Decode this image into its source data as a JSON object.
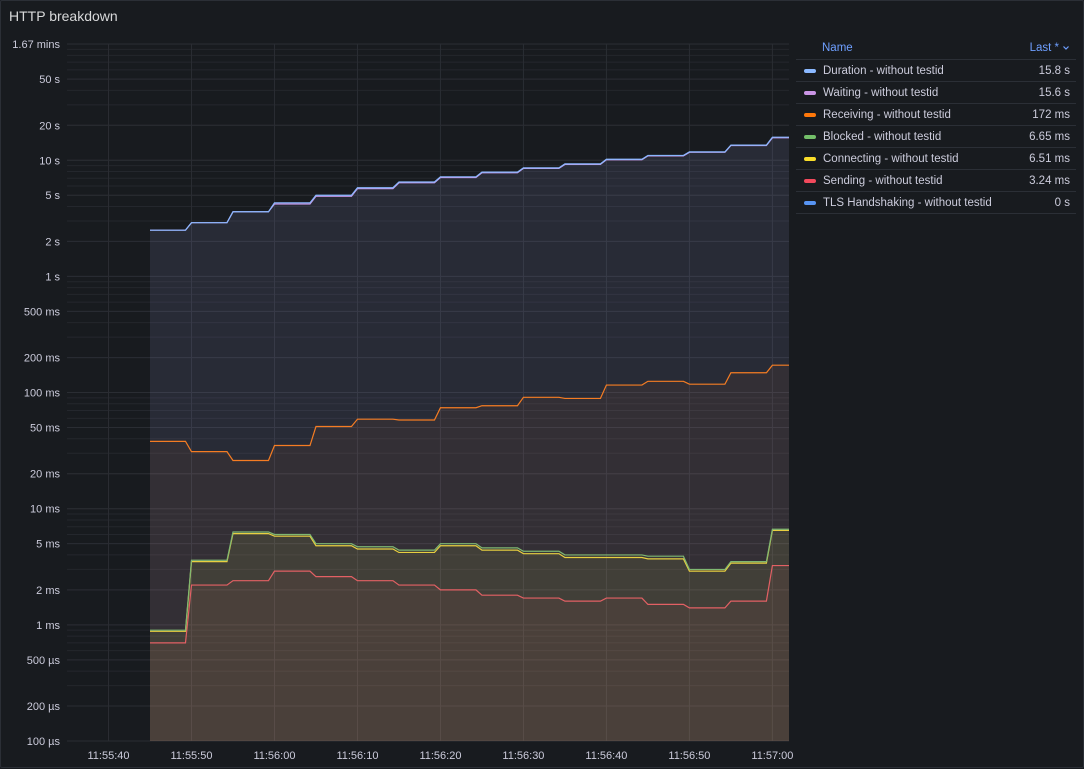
{
  "panel": {
    "title": "HTTP breakdown"
  },
  "legend": {
    "name_header": "Name",
    "last_header": "Last *",
    "chevron_icon": "chevron-down-icon"
  },
  "chart_data": {
    "type": "area",
    "yscale": "log",
    "ylim": [
      0.0001,
      100.2
    ],
    "grid": true,
    "legend_position": "right",
    "y_ticks": [
      {
        "v": 100.2,
        "label": "1.67 mins"
      },
      {
        "v": 50,
        "label": "50 s"
      },
      {
        "v": 20,
        "label": "20 s"
      },
      {
        "v": 10,
        "label": "10 s"
      },
      {
        "v": 5,
        "label": "5 s"
      },
      {
        "v": 2,
        "label": "2 s"
      },
      {
        "v": 1,
        "label": "1 s"
      },
      {
        "v": 0.5,
        "label": "500 ms"
      },
      {
        "v": 0.2,
        "label": "200 ms"
      },
      {
        "v": 0.1,
        "label": "100 ms"
      },
      {
        "v": 0.05,
        "label": "50 ms"
      },
      {
        "v": 0.02,
        "label": "20 ms"
      },
      {
        "v": 0.01,
        "label": "10 ms"
      },
      {
        "v": 0.005,
        "label": "5 ms"
      },
      {
        "v": 0.002,
        "label": "2 ms"
      },
      {
        "v": 0.001,
        "label": "1 ms"
      },
      {
        "v": 0.0005,
        "label": "500 µs"
      },
      {
        "v": 0.0002,
        "label": "200 µs"
      },
      {
        "v": 0.0001,
        "label": "100 µs"
      }
    ],
    "x_ticks": [
      "11:55:40",
      "11:55:50",
      "11:56:00",
      "11:56:10",
      "11:56:20",
      "11:56:30",
      "11:56:40",
      "11:56:50",
      "11:57:00"
    ],
    "x": [
      "11:55:45",
      "11:55:50",
      "11:55:55",
      "11:56:00",
      "11:56:05",
      "11:56:10",
      "11:56:15",
      "11:56:20",
      "11:56:25",
      "11:56:30",
      "11:56:35",
      "11:56:40",
      "11:56:45",
      "11:56:50",
      "11:56:55",
      "11:57:00"
    ],
    "series": [
      {
        "name": "Duration - without testid",
        "color": "#8ab8ff",
        "last": "15.8 s",
        "values": [
          2.5,
          2.9,
          3.6,
          4.3,
          5.0,
          5.8,
          6.5,
          7.2,
          7.9,
          8.6,
          9.3,
          10.2,
          11.0,
          11.8,
          13.5,
          15.8
        ]
      },
      {
        "name": "Waiting - without testid",
        "color": "#ca95e5",
        "last": "15.6 s",
        "values": [
          2.5,
          2.9,
          3.6,
          4.2,
          4.9,
          5.7,
          6.4,
          7.1,
          7.8,
          8.5,
          9.2,
          10.1,
          10.9,
          11.7,
          13.4,
          15.6
        ]
      },
      {
        "name": "Receiving - without testid",
        "color": "#ff780a",
        "last": "172 ms",
        "values": [
          0.038,
          0.031,
          0.026,
          0.035,
          0.051,
          0.059,
          0.058,
          0.074,
          0.077,
          0.091,
          0.089,
          0.116,
          0.125,
          0.118,
          0.148,
          0.172
        ]
      },
      {
        "name": "Blocked - without testid",
        "color": "#73bf69",
        "last": "6.65 ms",
        "values": [
          0.0009,
          0.0036,
          0.0063,
          0.006,
          0.005,
          0.0047,
          0.0044,
          0.005,
          0.0046,
          0.0043,
          0.004,
          0.004,
          0.0039,
          0.003,
          0.0035,
          0.00665
        ]
      },
      {
        "name": "Connecting - without testid",
        "color": "#fade2a",
        "last": "6.51 ms",
        "values": [
          0.00088,
          0.0035,
          0.0061,
          0.0058,
          0.0048,
          0.0045,
          0.0042,
          0.0048,
          0.0044,
          0.0041,
          0.0038,
          0.0038,
          0.0037,
          0.0029,
          0.0034,
          0.00651
        ]
      },
      {
        "name": "Sending - without testid",
        "color": "#f2495c",
        "last": "3.24 ms",
        "values": [
          0.0007,
          0.0022,
          0.0024,
          0.0029,
          0.0026,
          0.0024,
          0.0022,
          0.002,
          0.0018,
          0.0017,
          0.0016,
          0.0017,
          0.0015,
          0.0014,
          0.0016,
          0.00324
        ]
      },
      {
        "name": "TLS Handshaking - without testid",
        "color": "#5794f2",
        "last": "0 s",
        "values": [
          0,
          0,
          0,
          0,
          0,
          0,
          0,
          0,
          0,
          0,
          0,
          0,
          0,
          0,
          0,
          0
        ]
      }
    ]
  }
}
